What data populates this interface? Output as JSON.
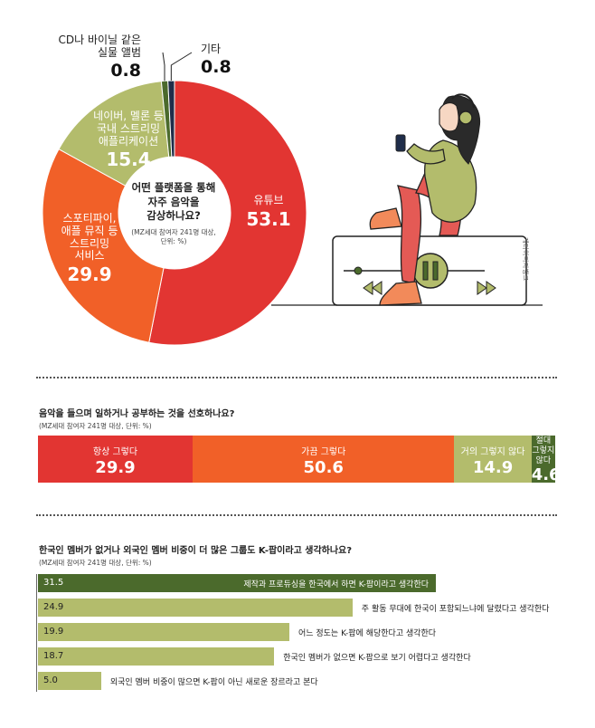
{
  "chart_data": [
    {
      "type": "pie",
      "title": "어떤 플랫폼을 통해\n자주 음악을\n감상하나요?",
      "note": "(MZ세대 참여자 241명 대상,\n단위: %)",
      "slices": [
        {
          "label": "유튜브",
          "value": 53.1,
          "color": "#e23532"
        },
        {
          "label": "스포티파이,\n애플 뮤직 등\n스트리밍\n서비스",
          "value": 29.9,
          "color": "#f16028"
        },
        {
          "label": "네이버, 멜론 등\n국내 스트리밍\n애플리케이션",
          "value": 15.4,
          "color": "#b3bc6c"
        },
        {
          "label": "CD나 바이닐 같은\n실물 앨범",
          "value": 0.8,
          "color": "#4b6a2c"
        },
        {
          "label": "기타",
          "value": 0.8,
          "color": "#1f2d4a"
        }
      ]
    },
    {
      "type": "bar",
      "orientation": "horizontal-stacked",
      "title": "음악을 들으며 일하거나 공부하는 것을 선호하나요?",
      "note": "(MZ세대 참여자 241명 대상, 단위: %)",
      "segments": [
        {
          "label": "항상 그렇다",
          "value": 29.9,
          "color": "#e23532"
        },
        {
          "label": "가끔 그렇다",
          "value": 50.6,
          "color": "#f16028"
        },
        {
          "label": "거의 그렇지 않다",
          "value": 14.9,
          "color": "#b3bc6c"
        },
        {
          "label": "절대\n그렇지 않다",
          "value": 4.6,
          "color": "#4b6a2c"
        }
      ]
    },
    {
      "type": "bar",
      "orientation": "horizontal",
      "title": "한국인 멤버가 없거나 외국인 멤버 비중이 더 많은 그룹도 K-팝이라고 생각하나요?",
      "note": "(MZ세대 참여자 241명 대상, 단위: %)",
      "xlim": [
        0,
        31.5
      ],
      "bars": [
        {
          "label": "제작과 프로듀싱을 한국에서 하면 K-팝이라고 생각한다",
          "value": 31.5,
          "color": "#4b6a2c"
        },
        {
          "label": "주 활동 무대에 한국이 포함되느냐에 달렸다고 생각한다",
          "value": 24.9,
          "color": "#b3bc6c"
        },
        {
          "label": "어느 정도는 K-팝에 해당한다고 생각한다",
          "value": 19.9,
          "color": "#b3bc6c"
        },
        {
          "label": "한국인 멤버가 없으면 K-팝으로 보기 어렵다고 생각한다",
          "value": 18.7,
          "color": "#b3bc6c"
        },
        {
          "label": "외국인 멤버 비중이 많으면 K-팝이 아닌 새로운 장르라고 본다",
          "value": 5.0,
          "color": "#b3bc6c"
        }
      ]
    }
  ],
  "credit": "게티이미지뱅크"
}
